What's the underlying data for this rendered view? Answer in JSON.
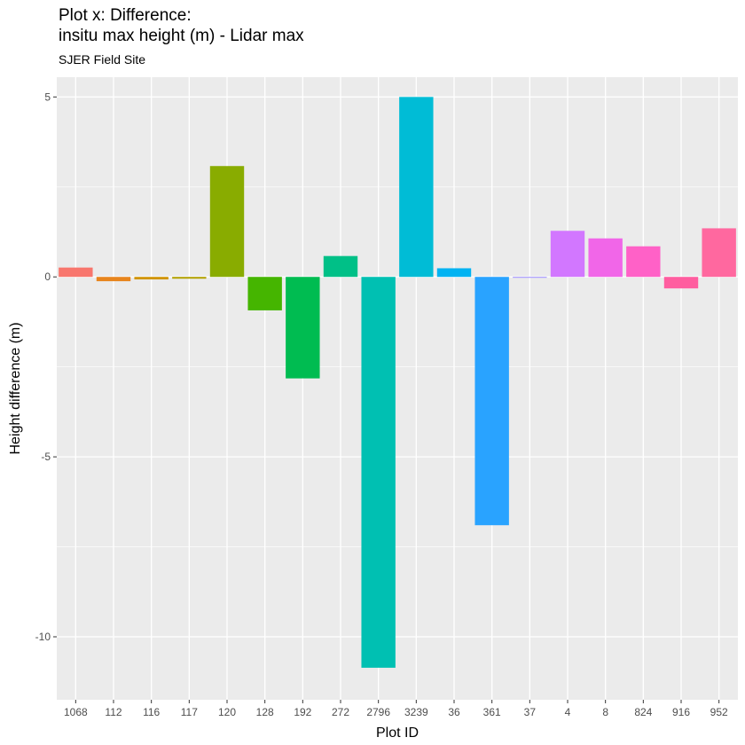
{
  "chart_data": {
    "type": "bar",
    "title": [
      "Plot x: Difference:",
      "insitu max height (m) - Lidar max"
    ],
    "subtitle": "SJER Field Site",
    "xlabel": "Plot ID",
    "ylabel": "Height difference (m)",
    "ylim": [
      -11.75,
      5.55
    ],
    "yticks": [
      5,
      0,
      -5,
      -10
    ],
    "ytick_labels": [
      "5",
      "0",
      "-5",
      "-10"
    ],
    "grid": true,
    "legend": "none",
    "categories": [
      "1068",
      "112",
      "116",
      "117",
      "120",
      "128",
      "192",
      "272",
      "2796",
      "3239",
      "36",
      "361",
      "37",
      "4",
      "8",
      "824",
      "916",
      "952"
    ],
    "values": [
      0.26,
      -0.12,
      -0.07,
      -0.05,
      3.08,
      -0.93,
      -2.82,
      0.58,
      -10.86,
      5.0,
      0.24,
      -6.9,
      -0.02,
      1.28,
      1.07,
      0.85,
      -0.32,
      1.35
    ],
    "colors": [
      "#F8766D",
      "#E7851E",
      "#D09400",
      "#B2A100",
      "#89AC00",
      "#45B500",
      "#00BC51",
      "#00C087",
      "#00C0B2",
      "#00BCD6",
      "#00B3F2",
      "#29A3FF",
      "#9C8DFF",
      "#D277FF",
      "#F166E8",
      "#FF61C7",
      "#FF5D9F",
      "#FF689F"
    ]
  }
}
